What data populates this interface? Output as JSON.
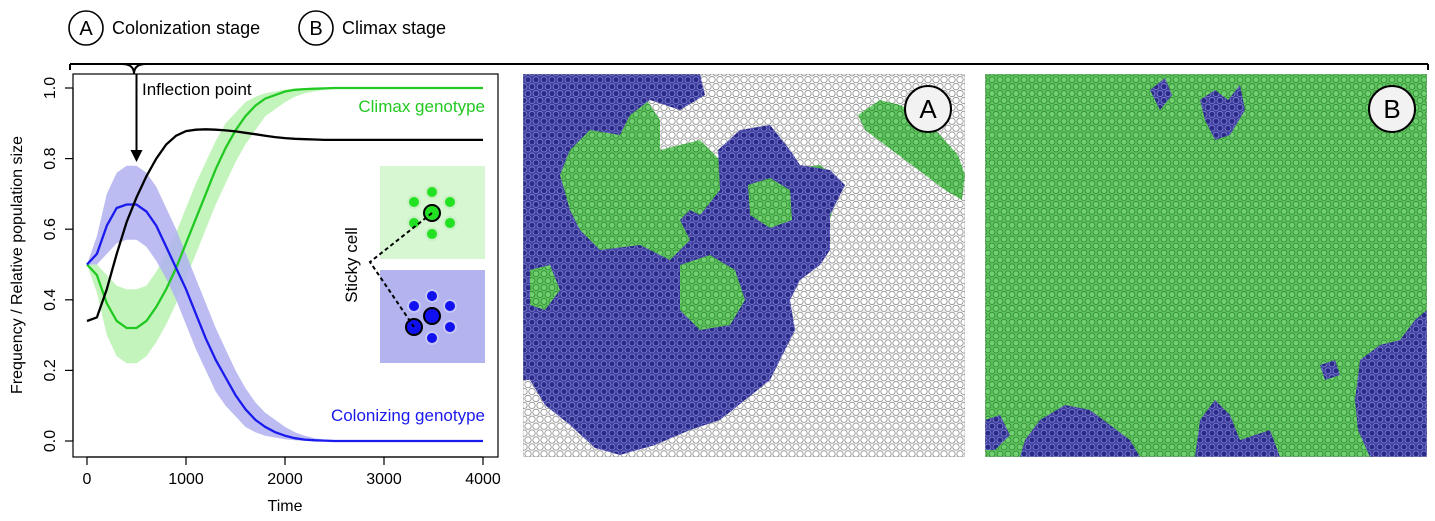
{
  "legend": {
    "stage_a_letter": "A",
    "stage_a_label": "Colonization stage",
    "stage_b_letter": "B",
    "stage_b_label": "Climax stage"
  },
  "annotations": {
    "inflection": "Inflection point",
    "climax": "Climax genotype",
    "colonizing": "Colonizing genotype",
    "sticky": "Sticky cell",
    "panel_a": "A",
    "panel_b": "B"
  },
  "colors": {
    "climax": "#22c922",
    "climax_band": "#b8f2b0",
    "colonizing": "#1a1aee",
    "colonizing_band": "#b0b0f0",
    "population": "#000000",
    "lattice_green": "#5ec85e",
    "lattice_navy": "#2a2a8a",
    "inset_green_bg": "#d6f7d2",
    "inset_blue_bg": "#b3b3ef"
  },
  "chart_data": {
    "type": "line",
    "xlabel": "Time",
    "ylabel": "Frequency / Relative population size",
    "xlim": [
      0,
      4000
    ],
    "ylim": [
      0,
      1.0
    ],
    "xticks": [
      0,
      1000,
      2000,
      3000,
      4000
    ],
    "yticks": [
      0.0,
      0.2,
      0.4,
      0.6,
      0.8,
      1.0
    ],
    "ytick_labels": [
      "0.0",
      "0.2",
      "0.4",
      "0.6",
      "0.8",
      "1.0"
    ],
    "grid": false,
    "x": [
      0,
      100,
      200,
      300,
      400,
      500,
      600,
      700,
      800,
      900,
      1000,
      1100,
      1200,
      1300,
      1400,
      1500,
      1600,
      1700,
      1800,
      1900,
      2000,
      2100,
      2200,
      2300,
      2400,
      2500,
      2600,
      2700,
      2800,
      2900,
      3000,
      3200,
      3400,
      3600,
      3800,
      4000
    ],
    "series": [
      {
        "name": "Climax genotype",
        "values": [
          0.5,
          0.47,
          0.39,
          0.34,
          0.32,
          0.32,
          0.34,
          0.38,
          0.43,
          0.49,
          0.56,
          0.63,
          0.7,
          0.77,
          0.83,
          0.88,
          0.92,
          0.95,
          0.97,
          0.98,
          0.99,
          0.995,
          0.997,
          0.998,
          0.999,
          1.0,
          1.0,
          1.0,
          1.0,
          1.0,
          1.0,
          1.0,
          1.0,
          1.0,
          1.0,
          1.0
        ],
        "lower": [
          0.5,
          0.42,
          0.3,
          0.24,
          0.22,
          0.22,
          0.24,
          0.28,
          0.33,
          0.39,
          0.46,
          0.53,
          0.6,
          0.67,
          0.73,
          0.79,
          0.84,
          0.88,
          0.92,
          0.94,
          0.96,
          0.975,
          0.985,
          0.99,
          0.995,
          0.997,
          0.998,
          0.999,
          1.0,
          1.0,
          1.0,
          1.0,
          1.0,
          1.0,
          1.0,
          1.0
        ],
        "upper": [
          0.5,
          0.5,
          0.47,
          0.44,
          0.43,
          0.43,
          0.44,
          0.48,
          0.53,
          0.59,
          0.66,
          0.73,
          0.79,
          0.85,
          0.9,
          0.93,
          0.96,
          0.975,
          0.985,
          0.99,
          0.995,
          0.998,
          1.0,
          1.0,
          1.0,
          1.0,
          1.0,
          1.0,
          1.0,
          1.0,
          1.0,
          1.0,
          1.0,
          1.0,
          1.0,
          1.0
        ]
      },
      {
        "name": "Colonizing genotype",
        "values": [
          0.5,
          0.53,
          0.61,
          0.66,
          0.67,
          0.67,
          0.65,
          0.61,
          0.55,
          0.49,
          0.43,
          0.36,
          0.29,
          0.23,
          0.18,
          0.13,
          0.09,
          0.06,
          0.04,
          0.025,
          0.015,
          0.008,
          0.004,
          0.002,
          0.001,
          0.0,
          0.0,
          0.0,
          0.0,
          0.0,
          0.0,
          0.0,
          0.0,
          0.0,
          0.0,
          0.0
        ],
        "lower": [
          0.5,
          0.5,
          0.53,
          0.56,
          0.57,
          0.57,
          0.55,
          0.51,
          0.46,
          0.4,
          0.33,
          0.26,
          0.2,
          0.14,
          0.1,
          0.07,
          0.04,
          0.025,
          0.015,
          0.01,
          0.005,
          0.002,
          0.0,
          0.0,
          0.0,
          0.0,
          0.0,
          0.0,
          0.0,
          0.0,
          0.0,
          0.0,
          0.0,
          0.0,
          0.0,
          0.0
        ],
        "upper": [
          0.5,
          0.58,
          0.7,
          0.76,
          0.78,
          0.78,
          0.76,
          0.72,
          0.66,
          0.6,
          0.53,
          0.46,
          0.39,
          0.32,
          0.26,
          0.2,
          0.15,
          0.11,
          0.08,
          0.06,
          0.04,
          0.025,
          0.015,
          0.008,
          0.004,
          0.002,
          0.001,
          0.0,
          0.0,
          0.0,
          0.0,
          0.0,
          0.0,
          0.0,
          0.0,
          0.0
        ]
      },
      {
        "name": "Relative population size",
        "values": [
          0.34,
          0.35,
          0.43,
          0.53,
          0.62,
          0.69,
          0.75,
          0.8,
          0.84,
          0.865,
          0.878,
          0.882,
          0.883,
          0.882,
          0.88,
          0.877,
          0.873,
          0.869,
          0.865,
          0.861,
          0.858,
          0.856,
          0.855,
          0.854,
          0.853,
          0.853,
          0.853,
          0.853,
          0.853,
          0.853,
          0.853,
          0.853,
          0.853,
          0.853,
          0.853,
          0.853
        ]
      }
    ],
    "annotations": [
      {
        "text": "Inflection point",
        "x": 500
      },
      {
        "text": "Climax genotype"
      },
      {
        "text": "Colonizing genotype"
      },
      {
        "text": "Sticky cell"
      }
    ]
  }
}
